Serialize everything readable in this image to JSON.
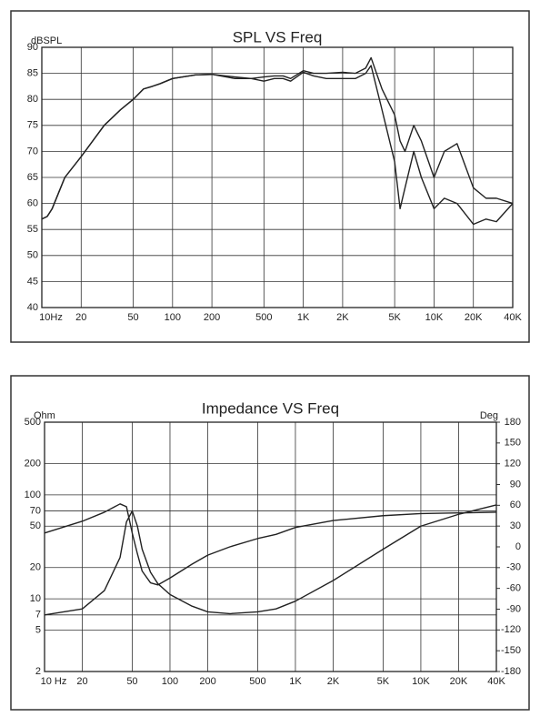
{
  "chart_data": [
    {
      "type": "line",
      "title": "SPL VS Freq",
      "ylabel": "dBSPL",
      "xscale": "log",
      "grid": true,
      "x": [
        10,
        11,
        12,
        15,
        20,
        30,
        40,
        50,
        60,
        70,
        80,
        100,
        150,
        200,
        300,
        400,
        500,
        600,
        700,
        800,
        1000,
        1200,
        1500,
        2000,
        2500,
        3000,
        3300,
        4000,
        5000,
        5500,
        6000,
        7000,
        8000,
        10000,
        12000,
        15000,
        20000,
        25000,
        30000,
        40000
      ],
      "series": [
        {
          "color": "#222222",
          "values": [
            57,
            57.5,
            59,
            65,
            69,
            75,
            78,
            80,
            82,
            82.5,
            83,
            84,
            84.7,
            84.8,
            84.3,
            84,
            84.3,
            84.5,
            84.5,
            84,
            85.5,
            85,
            85,
            85.2,
            85,
            86,
            88,
            82,
            77,
            72,
            70,
            75,
            72,
            65,
            70,
            71.5,
            63,
            61,
            61,
            60
          ]
        },
        {
          "color": "#222222",
          "values": [
            57,
            57.5,
            59,
            65,
            69,
            75,
            78,
            80,
            82,
            82.5,
            83,
            84,
            84.7,
            84.8,
            84,
            84,
            83.5,
            84,
            84,
            83.5,
            85.2,
            84.5,
            84,
            84,
            84,
            85,
            86.5,
            78,
            68,
            59,
            63,
            70,
            65,
            59,
            61,
            60,
            56,
            57,
            56.5,
            60
          ]
        }
      ],
      "xlim": [
        10,
        40000
      ],
      "xticks": [
        {
          "value": 10,
          "label": "10Hz"
        },
        20,
        50,
        100,
        200,
        500,
        {
          "value": 1000,
          "label": "1K"
        },
        {
          "value": 2000,
          "label": "2K"
        },
        {
          "value": 5000,
          "label": "5K"
        },
        {
          "value": 10000,
          "label": "10K"
        },
        {
          "value": 20000,
          "label": "20K"
        },
        {
          "value": 40000,
          "label": "40K"
        }
      ],
      "ylim": [
        40,
        90
      ],
      "yticks": [
        40,
        45,
        50,
        55,
        60,
        65,
        70,
        75,
        80,
        85,
        90
      ]
    },
    {
      "type": "line",
      "title": "Impedance VS Freq",
      "ylabel": "Ohm",
      "y2label": "Deg",
      "xscale": "log",
      "yscale": "log",
      "grid": true,
      "x": [
        10,
        20,
        30,
        40,
        45,
        50,
        55,
        60,
        70,
        80,
        100,
        150,
        200,
        300,
        500,
        700,
        1000,
        2000,
        5000,
        10000,
        20000,
        40000
      ],
      "series": [
        {
          "color": "#222222",
          "values": [
            7,
            8,
            12,
            25,
            55,
            70,
            50,
            30,
            18,
            14,
            11,
            8.5,
            7.5,
            7.2,
            7.5,
            8,
            9.5,
            15,
            30,
            50,
            65,
            80
          ]
        },
        {
          "color": "#222222",
          "axis": "y2",
          "values": [
            20,
            37,
            50,
            62,
            58,
            20,
            -10,
            -35,
            -52,
            -55,
            -45,
            -25,
            -12,
            0,
            12,
            18,
            28,
            38,
            45,
            48,
            49,
            50
          ]
        }
      ],
      "xlim": [
        10,
        40000
      ],
      "xticks": [
        {
          "value": 10,
          "label": "10 Hz"
        },
        20,
        50,
        100,
        200,
        500,
        {
          "value": 1000,
          "label": "1K"
        },
        {
          "value": 2000,
          "label": "2K"
        },
        {
          "value": 5000,
          "label": "5K"
        },
        {
          "value": 10000,
          "label": "10K"
        },
        {
          "value": 20000,
          "label": "20K"
        },
        {
          "value": 40000,
          "label": "40K"
        }
      ],
      "ylim": [
        2,
        500
      ],
      "yticks": [
        2,
        5,
        7,
        10,
        20,
        50,
        70,
        100,
        200,
        500
      ],
      "y2lim": [
        -180,
        180
      ],
      "y2ticks": [
        -180,
        -150,
        -120,
        -90,
        -60,
        -30,
        0,
        30,
        60,
        90,
        120,
        150,
        180
      ]
    }
  ]
}
